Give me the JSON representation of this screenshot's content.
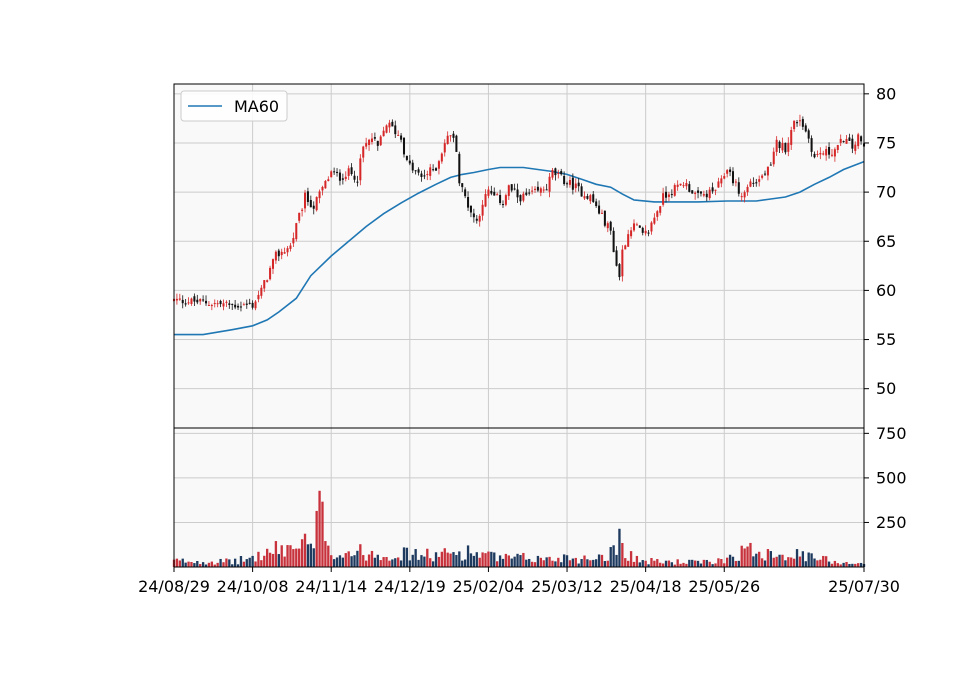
{
  "chart_data": {
    "type": "candlestick",
    "title": "",
    "legend": {
      "entries": [
        "MA60"
      ],
      "placement": "top-left"
    },
    "grid": true,
    "colors": {
      "up": "#d62728",
      "down": "#111111",
      "ma": "#1f77b4",
      "vol_up": "#c8323c",
      "vol_down": "#1e3a5f",
      "panel_bg": "#f9f9f9",
      "grid": "#cccccc"
    },
    "price_axis": {
      "ylim": [
        46,
        81
      ],
      "ticks": [
        50,
        55,
        60,
        65,
        70,
        75,
        80
      ],
      "tick_labels": [
        "50",
        "55",
        "60",
        "65",
        "70",
        "75",
        "80"
      ]
    },
    "volume_axis": {
      "ylim": [
        0,
        780
      ],
      "ticks": [
        250,
        500,
        750
      ],
      "tick_labels": [
        "250",
        "500",
        "750"
      ]
    },
    "x_axis": {
      "tick_labels": [
        "24/08/29",
        "24/10/08",
        "24/11/14",
        "24/12/19",
        "25/02/04",
        "25/03/12",
        "25/04/18",
        "25/05/26",
        "25/07/30"
      ],
      "tick_index": [
        0,
        27,
        54,
        81,
        108,
        135,
        162,
        189,
        237
      ],
      "n_sessions": 238
    },
    "price_path": {
      "index": [
        0,
        10,
        20,
        27,
        30,
        35,
        40,
        45,
        48,
        50,
        54,
        57,
        60,
        63,
        65,
        68,
        70,
        73,
        75,
        78,
        80,
        83,
        85,
        90,
        93,
        95,
        97,
        98,
        100,
        102,
        104,
        106,
        108,
        110,
        113,
        115,
        118,
        120,
        125,
        128,
        130,
        135,
        138,
        140,
        143,
        145,
        147,
        150,
        152,
        153,
        154,
        155,
        157,
        159,
        161,
        163,
        165,
        168,
        170,
        173,
        175,
        180,
        185,
        188,
        190,
        195,
        198,
        200,
        205,
        207,
        210,
        213,
        215,
        218,
        220,
        222,
        225,
        228,
        230,
        233,
        235,
        237
      ],
      "close": [
        59,
        58.8,
        58.5,
        58.5,
        60,
        63.5,
        64.5,
        69.5,
        68.5,
        69.8,
        72,
        71.5,
        72,
        71.5,
        74.5,
        75.5,
        74.5,
        77,
        76.5,
        75.5,
        73,
        72,
        71.5,
        72.5,
        75,
        76,
        74.5,
        71,
        69.5,
        68,
        67,
        69,
        70,
        69.5,
        69,
        70.5,
        69.5,
        69.5,
        70,
        70.5,
        72,
        71,
        70.5,
        70,
        69.5,
        68.5,
        67.5,
        66,
        62.5,
        61.5,
        64,
        65,
        66.5,
        66.5,
        65.5,
        66,
        67.5,
        69.5,
        70,
        70.5,
        71,
        69.5,
        70,
        71,
        72.5,
        69.5,
        71,
        71,
        72.5,
        75,
        74.5,
        77,
        77.5,
        75.5,
        73.5,
        74,
        74,
        74.5,
        75.5,
        74.5,
        75.5,
        74.5
      ]
    },
    "ma60": {
      "index": [
        0,
        10,
        20,
        27,
        32,
        36,
        42,
        47,
        54,
        60,
        66,
        72,
        78,
        84,
        90,
        95,
        99,
        103,
        108,
        112,
        115,
        120,
        125,
        130,
        135,
        140,
        145,
        150,
        154,
        158,
        165,
        170,
        180,
        190,
        200,
        205,
        210,
        215,
        220,
        225,
        230,
        237
      ],
      "values": [
        55.5,
        55.5,
        56,
        56.4,
        57,
        57.8,
        59.2,
        61.5,
        63.5,
        65,
        66.5,
        67.8,
        68.9,
        69.9,
        70.8,
        71.5,
        71.8,
        72,
        72.3,
        72.5,
        72.5,
        72.5,
        72.3,
        72.1,
        71.8,
        71.3,
        70.8,
        70.5,
        69.8,
        69.2,
        69,
        69,
        69,
        69.1,
        69.1,
        69.3,
        69.5,
        70,
        70.8,
        71.5,
        72.3,
        73.1
      ]
    },
    "volume_path": {
      "index": [
        0,
        20,
        27,
        35,
        45,
        48,
        50,
        54,
        56,
        60,
        70,
        80,
        90,
        100,
        105,
        108,
        115,
        120,
        130,
        135,
        140,
        150,
        152,
        153,
        155,
        160,
        170,
        185,
        190,
        195,
        200,
        205,
        210,
        220,
        230,
        237
      ],
      "base": [
        40,
        35,
        60,
        110,
        150,
        120,
        380,
        110,
        80,
        100,
        90,
        85,
        75,
        100,
        90,
        70,
        55,
        60,
        50,
        70,
        50,
        90,
        170,
        200,
        110,
        40,
        35,
        30,
        60,
        100,
        110,
        100,
        90,
        60,
        30,
        25
      ]
    }
  }
}
